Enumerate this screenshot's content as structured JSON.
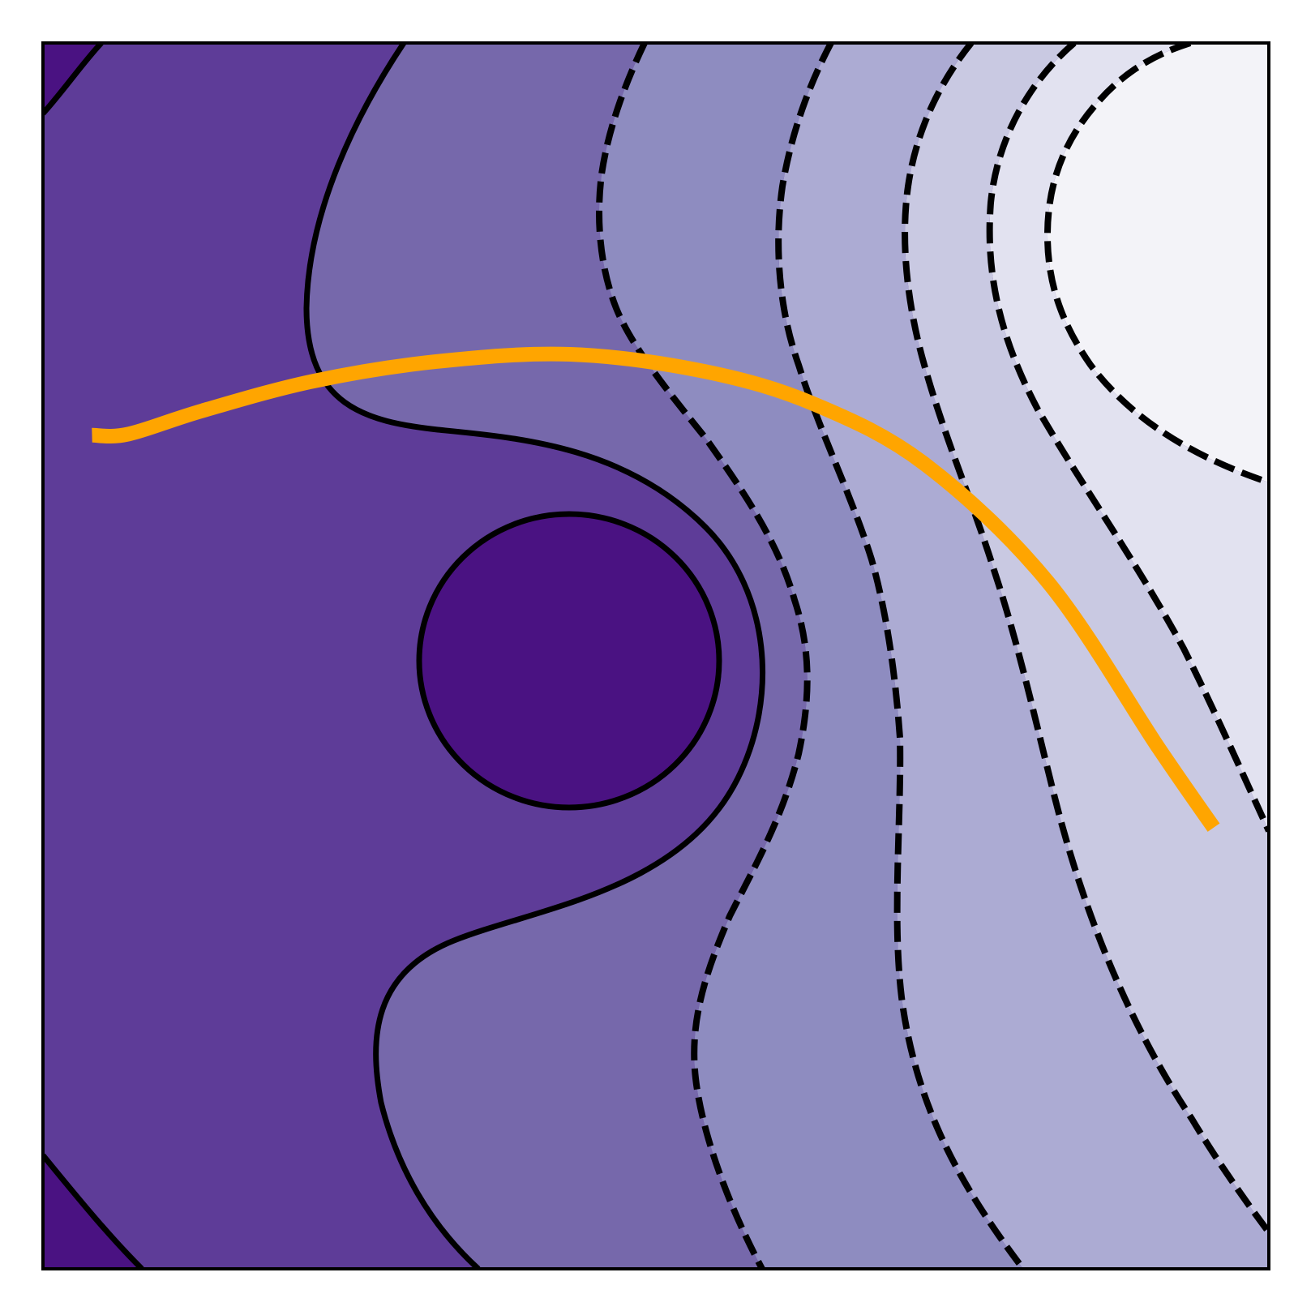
{
  "chart_data": {
    "type": "contour",
    "title": "",
    "xlabel": "",
    "ylabel": "",
    "axes_visible": false,
    "grid": false,
    "legend": null,
    "levels": [
      {
        "level": -5,
        "fill": "#4a1282",
        "contour_style": "solid"
      },
      {
        "level": -4,
        "fill": "#5e3c98",
        "contour_style": "solid"
      },
      {
        "level": -3,
        "fill": "#7668ab",
        "contour_style": "dashed"
      },
      {
        "level": -2,
        "fill": "#8e8cc0",
        "contour_style": "dashed"
      },
      {
        "level": -1,
        "fill": "#acabd3",
        "contour_style": "dashed"
      },
      {
        "level": 0,
        "fill": "#c9c9e2",
        "contour_style": "dashed"
      },
      {
        "level": 1,
        "fill": "#e2e2f0",
        "contour_style": "dashed"
      },
      {
        "level": 2,
        "fill": "#f3f3f8",
        "contour_style": null
      }
    ],
    "overlay_path": {
      "color": "#ffa500",
      "points": [
        [
          0.04,
          0.68
        ],
        [
          0.07,
          0.681
        ],
        [
          0.13,
          0.7
        ],
        [
          0.22,
          0.724
        ],
        [
          0.32,
          0.74
        ],
        [
          0.43,
          0.746
        ],
        [
          0.54,
          0.732
        ],
        [
          0.63,
          0.705
        ],
        [
          0.72,
          0.656
        ],
        [
          0.82,
          0.56
        ],
        [
          0.91,
          0.425
        ],
        [
          0.955,
          0.36
        ]
      ]
    }
  }
}
